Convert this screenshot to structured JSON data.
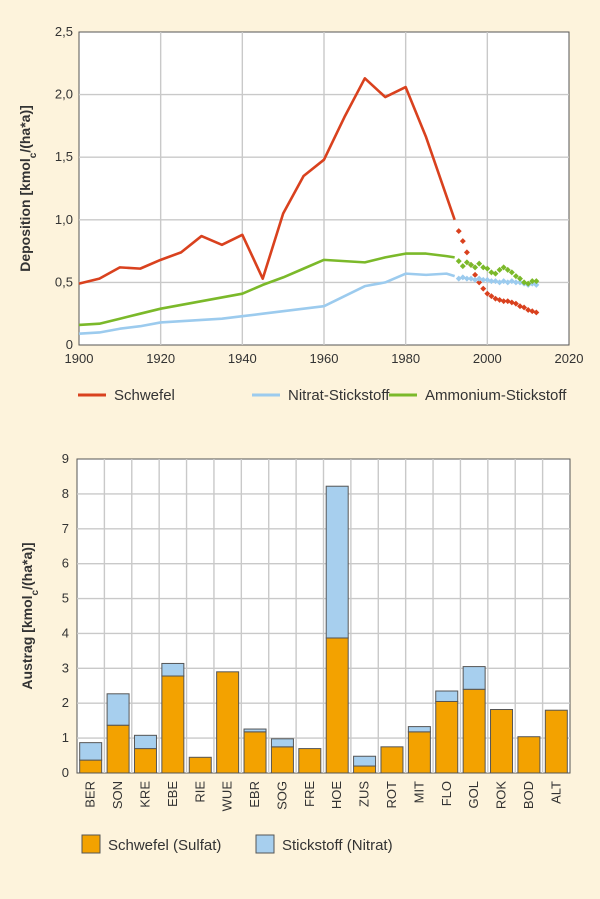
{
  "chart_data": [
    {
      "type": "line",
      "ylabel": "Deposition [kmolc/(ha*a)]",
      "xlim": [
        1900,
        2020
      ],
      "ylim": [
        0,
        2.5
      ],
      "xticks": [
        "1900",
        "1920",
        "1940",
        "1960",
        "1980",
        "2000",
        "2020"
      ],
      "yticks": [
        "0",
        "0,5",
        "1,0",
        "1,5",
        "2,0",
        "2,5"
      ],
      "grid": true,
      "legend": "bottom",
      "series": [
        {
          "name": "Schwefel",
          "color": "#d9411e",
          "solid": [
            [
              1900,
              0.49
            ],
            [
              1905,
              0.53
            ],
            [
              1910,
              0.62
            ],
            [
              1915,
              0.61
            ],
            [
              1920,
              0.68
            ],
            [
              1925,
              0.74
            ],
            [
              1930,
              0.87
            ],
            [
              1935,
              0.8
            ],
            [
              1940,
              0.88
            ],
            [
              1945,
              0.53
            ],
            [
              1950,
              1.05
            ],
            [
              1955,
              1.35
            ],
            [
              1960,
              1.48
            ],
            [
              1965,
              1.82
            ],
            [
              1970,
              2.13
            ],
            [
              1975,
              1.98
            ],
            [
              1980,
              2.06
            ],
            [
              1985,
              1.66
            ],
            [
              1992,
              1.0
            ]
          ],
          "dotted": [
            [
              1992,
              1.0
            ],
            [
              1993,
              0.91
            ],
            [
              1994,
              0.83
            ],
            [
              1995,
              0.74
            ],
            [
              1996,
              0.64
            ],
            [
              1997,
              0.56
            ],
            [
              1998,
              0.5
            ],
            [
              1999,
              0.45
            ],
            [
              2000,
              0.41
            ],
            [
              2001,
              0.39
            ],
            [
              2002,
              0.37
            ],
            [
              2003,
              0.36
            ],
            [
              2004,
              0.35
            ],
            [
              2005,
              0.35
            ],
            [
              2006,
              0.34
            ],
            [
              2007,
              0.33
            ],
            [
              2008,
              0.31
            ],
            [
              2009,
              0.3
            ],
            [
              2010,
              0.28
            ],
            [
              2011,
              0.27
            ],
            [
              2012,
              0.26
            ]
          ]
        },
        {
          "name": "Nitrat-Stickstoff",
          "color": "#9ccbee",
          "solid": [
            [
              1900,
              0.09
            ],
            [
              1905,
              0.1
            ],
            [
              1910,
              0.13
            ],
            [
              1915,
              0.15
            ],
            [
              1920,
              0.18
            ],
            [
              1925,
              0.19
            ],
            [
              1930,
              0.2
            ],
            [
              1935,
              0.21
            ],
            [
              1940,
              0.23
            ],
            [
              1945,
              0.25
            ],
            [
              1950,
              0.27
            ],
            [
              1955,
              0.29
            ],
            [
              1960,
              0.31
            ],
            [
              1965,
              0.39
            ],
            [
              1970,
              0.47
            ],
            [
              1975,
              0.5
            ],
            [
              1980,
              0.57
            ],
            [
              1985,
              0.56
            ],
            [
              1990,
              0.57
            ],
            [
              1992,
              0.55
            ]
          ],
          "dotted": [
            [
              1992,
              0.55
            ],
            [
              1993,
              0.53
            ],
            [
              1994,
              0.54
            ],
            [
              1995,
              0.53
            ],
            [
              1996,
              0.53
            ],
            [
              1997,
              0.52
            ],
            [
              1998,
              0.53
            ],
            [
              1999,
              0.52
            ],
            [
              2000,
              0.52
            ],
            [
              2001,
              0.51
            ],
            [
              2002,
              0.51
            ],
            [
              2003,
              0.5
            ],
            [
              2004,
              0.51
            ],
            [
              2005,
              0.5
            ],
            [
              2006,
              0.51
            ],
            [
              2007,
              0.5
            ],
            [
              2008,
              0.5
            ],
            [
              2009,
              0.49
            ],
            [
              2010,
              0.48
            ],
            [
              2011,
              0.49
            ],
            [
              2012,
              0.48
            ]
          ]
        },
        {
          "name": "Ammonium-Stickstoff",
          "color": "#7bb92a",
          "solid": [
            [
              1900,
              0.16
            ],
            [
              1905,
              0.17
            ],
            [
              1910,
              0.21
            ],
            [
              1915,
              0.25
            ],
            [
              1920,
              0.29
            ],
            [
              1925,
              0.32
            ],
            [
              1930,
              0.35
            ],
            [
              1935,
              0.38
            ],
            [
              1940,
              0.41
            ],
            [
              1945,
              0.48
            ],
            [
              1950,
              0.54
            ],
            [
              1955,
              0.61
            ],
            [
              1960,
              0.68
            ],
            [
              1965,
              0.67
            ],
            [
              1970,
              0.66
            ],
            [
              1975,
              0.7
            ],
            [
              1980,
              0.73
            ],
            [
              1985,
              0.73
            ],
            [
              1990,
              0.71
            ],
            [
              1992,
              0.7
            ]
          ],
          "dotted": [
            [
              1992,
              0.7
            ],
            [
              1993,
              0.67
            ],
            [
              1994,
              0.63
            ],
            [
              1995,
              0.66
            ],
            [
              1996,
              0.64
            ],
            [
              1997,
              0.62
            ],
            [
              1998,
              0.65
            ],
            [
              1999,
              0.62
            ],
            [
              2000,
              0.61
            ],
            [
              2001,
              0.58
            ],
            [
              2002,
              0.57
            ],
            [
              2003,
              0.6
            ],
            [
              2004,
              0.62
            ],
            [
              2005,
              0.6
            ],
            [
              2006,
              0.58
            ],
            [
              2007,
              0.55
            ],
            [
              2008,
              0.53
            ],
            [
              2009,
              0.5
            ],
            [
              2010,
              0.49
            ],
            [
              2011,
              0.51
            ],
            [
              2012,
              0.51
            ]
          ]
        }
      ]
    },
    {
      "type": "bar",
      "stacked": true,
      "ylabel": "Austrag [kmolc/(ha*a)]",
      "ylim": [
        0,
        9
      ],
      "yticks": [
        "0",
        "1",
        "2",
        "3",
        "4",
        "5",
        "6",
        "7",
        "8",
        "9"
      ],
      "grid": true,
      "legend": "bottom",
      "categories": [
        "BER",
        "SON",
        "KRE",
        "EBE",
        "RIE",
        "WUE",
        "EBR",
        "SOG",
        "FRE",
        "HOE",
        "ZUS",
        "ROT",
        "MIT",
        "FLO",
        "GOL",
        "ROK",
        "BOD",
        "ALT"
      ],
      "series": [
        {
          "name": "Schwefel (Sulfat)",
          "color": "#f3a200",
          "values": [
            0.37,
            1.37,
            0.7,
            2.78,
            0.45,
            2.9,
            1.18,
            0.75,
            0.7,
            3.87,
            0.2,
            0.75,
            1.18,
            2.05,
            2.4,
            1.82,
            1.04,
            1.8
          ]
        },
        {
          "name": "Stickstoff (Nitrat)",
          "color": "#a7cfee",
          "values": [
            0.5,
            0.9,
            0.38,
            0.36,
            0.0,
            0.0,
            0.08,
            0.23,
            0.0,
            4.35,
            0.28,
            0.0,
            0.15,
            0.3,
            0.65,
            0.0,
            0.0,
            0.0
          ]
        }
      ]
    }
  ]
}
